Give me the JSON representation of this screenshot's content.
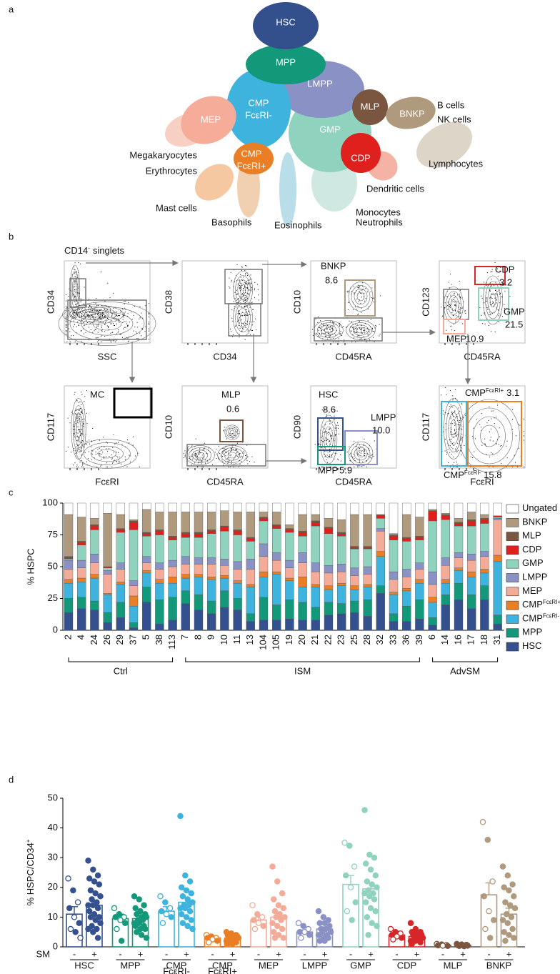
{
  "panel_labels": [
    "a",
    "b",
    "c",
    "d"
  ],
  "diagram": {
    "nodes": [
      {
        "label": "HSC"
      },
      {
        "label": "MPP"
      },
      {
        "label": "CMP",
        "sub": "FcεRI-"
      },
      {
        "label": "LMPP"
      },
      {
        "label": "MEP"
      },
      {
        "label": "GMP"
      },
      {
        "label": "MLP"
      },
      {
        "label": "BNKP"
      },
      {
        "label": "CDP"
      },
      {
        "label": "CMP",
        "sub": "FcεRI+"
      }
    ],
    "outcomes": [
      "B cells",
      "NK cells",
      "Megakaryocytes",
      "Erythrocytes",
      "Lymphocytes",
      "Dendritic cells",
      "Mast cells",
      "Basophils",
      "Eosinophils",
      "Monocytes",
      "Neutrophils"
    ]
  },
  "flow": {
    "title": "CD14",
    "title_sup": "-",
    "title_suffix": "singlets",
    "plots": [
      {
        "ylabel": "CD34",
        "xlabel": "SSC",
        "gates": []
      },
      {
        "ylabel": "CD38",
        "xlabel": "CD34",
        "gates": []
      },
      {
        "ylabel": "CD10",
        "xlabel": "CD45RA",
        "gates": [
          {
            "label": "BNKP",
            "value": "8.6"
          }
        ]
      },
      {
        "ylabel": "CD123",
        "xlabel": "CD45RA",
        "gates": [
          {
            "label": "CDP",
            "value": "3.2"
          },
          {
            "label": "GMP",
            "value": "21.5"
          },
          {
            "label": "MEP",
            "value": "10.9"
          }
        ]
      },
      {
        "ylabel": "CD117",
        "xlabel": "FcεRI",
        "gates": [
          {
            "label": "MC"
          }
        ]
      },
      {
        "ylabel": "CD10",
        "xlabel": "CD45RA",
        "gates": [
          {
            "label": "MLP",
            "value": "0.6"
          }
        ]
      },
      {
        "ylabel": "CD90",
        "xlabel": "CD45RA",
        "gates": [
          {
            "label": "HSC",
            "value": "8.6"
          },
          {
            "label": "LMPP",
            "value": "10.0"
          },
          {
            "label": "MPP",
            "value": "5.9"
          }
        ]
      },
      {
        "ylabel": "CD117",
        "xlabel": "FcεRI",
        "gates": [
          {
            "label": "CMP",
            "sup": "FcεRI+",
            "value": "3.1"
          },
          {
            "label": "CMP",
            "sup": "FcεRI-",
            "value": "15.8"
          }
        ]
      }
    ]
  },
  "chart_data": [
    {
      "type": "stacked_bar",
      "ylabel": "% HSPC",
      "ylim": [
        0,
        100
      ],
      "yticks": [
        0,
        25,
        50,
        75,
        100
      ],
      "groups": [
        {
          "name": "Ctrl",
          "categories": [
            "2",
            "4",
            "24",
            "26",
            "29",
            "37",
            "5",
            "38",
            "113"
          ]
        },
        {
          "name": "ISM",
          "categories": [
            "7",
            "8",
            "9",
            "10",
            "11",
            "13",
            "104",
            "105",
            "19",
            "20",
            "21",
            "22",
            "23",
            "25",
            "28",
            "32",
            "33",
            "36",
            "39"
          ]
        },
        {
          "name": "AdvSM",
          "categories": [
            "6",
            "14",
            "16",
            "17",
            "18",
            "31"
          ]
        }
      ],
      "series": [
        {
          "name": "HSC",
          "color": "#34508f",
          "values": [
            14,
            17,
            16,
            6,
            10,
            2,
            22,
            5,
            8,
            21,
            16,
            13,
            18,
            16,
            7,
            8,
            8,
            9,
            8,
            8,
            12,
            13,
            14,
            11,
            29,
            7,
            7,
            9,
            4,
            20,
            24,
            17,
            24,
            5
          ]
        },
        {
          "name": "MPP",
          "color": "#13987a",
          "values": [
            11,
            9,
            7,
            8,
            12,
            4,
            12,
            19,
            18,
            10,
            12,
            10,
            13,
            9,
            6,
            18,
            12,
            15,
            14,
            10,
            10,
            8,
            9,
            13,
            6,
            6,
            12,
            15,
            6,
            8,
            13,
            11,
            11,
            7
          ]
        },
        {
          "name": "CMP",
          "name_sup": "FcεRI-",
          "color": "#3db3dd",
          "values": [
            12,
            12,
            18,
            14,
            14,
            13,
            11,
            13,
            11,
            10,
            14,
            17,
            10,
            12,
            21,
            16,
            24,
            15,
            12,
            16,
            10,
            14,
            9,
            10,
            23,
            15,
            12,
            13,
            12,
            9,
            10,
            14,
            10,
            42
          ]
        },
        {
          "name": "CMP",
          "name_sup": "FcεRI+",
          "color": "#ea7e24",
          "values": [
            3,
            3,
            3,
            1,
            2,
            8,
            2,
            3,
            5,
            3,
            2,
            2,
            2,
            2,
            2,
            4,
            2,
            2,
            8,
            2,
            3,
            2,
            3,
            2,
            4,
            2,
            2,
            3,
            4,
            3,
            2,
            4,
            3,
            5
          ]
        },
        {
          "name": "MEP",
          "color": "#f4ab98",
          "values": [
            8,
            8,
            9,
            15,
            10,
            8,
            6,
            8,
            8,
            8,
            8,
            10,
            8,
            9,
            12,
            12,
            9,
            8,
            11,
            10,
            10,
            9,
            8,
            8,
            16,
            10,
            9,
            8,
            10,
            11,
            8,
            9,
            10,
            28
          ]
        },
        {
          "name": "LMPP",
          "color": "#8a91c4",
          "values": [
            7,
            6,
            7,
            3,
            5,
            4,
            5,
            5,
            5,
            6,
            5,
            5,
            5,
            6,
            8,
            10,
            6,
            6,
            8,
            7,
            6,
            6,
            6,
            6,
            2,
            6,
            6,
            5,
            10,
            6,
            4,
            5,
            4,
            1
          ]
        },
        {
          "name": "GMP",
          "color": "#8fd3bf",
          "values": [
            1,
            12,
            19,
            2,
            24,
            40,
            16,
            22,
            16,
            15,
            16,
            19,
            22,
            21,
            14,
            18,
            19,
            22,
            13,
            29,
            25,
            22,
            15,
            14,
            8,
            25,
            22,
            18,
            40,
            30,
            21,
            22,
            22,
            1
          ]
        },
        {
          "name": "CDP",
          "color": "#e0201c",
          "values": [
            1,
            2,
            3,
            1,
            2,
            6,
            2,
            3,
            2,
            3,
            3,
            2,
            3,
            3,
            2,
            2,
            2,
            2,
            3,
            3,
            4,
            2,
            1,
            1,
            2,
            3,
            2,
            2,
            8,
            3,
            2,
            4,
            3,
            1
          ]
        },
        {
          "name": "MLP",
          "color": "#7a5640",
          "values": [
            1,
            1,
            1,
            0,
            1,
            1,
            1,
            1,
            1,
            1,
            1,
            1,
            1,
            1,
            1,
            1,
            1,
            1,
            1,
            1,
            1,
            1,
            1,
            1,
            1,
            1,
            1,
            1,
            0,
            1,
            1,
            1,
            1,
            0
          ]
        },
        {
          "name": "BNKP",
          "color": "#b09a7e",
          "values": [
            33,
            19,
            5,
            42,
            11,
            1,
            18,
            14,
            19,
            16,
            16,
            14,
            12,
            14,
            20,
            4,
            10,
            3,
            13,
            5,
            7,
            10,
            25,
            25,
            0,
            1,
            18,
            15,
            1,
            1,
            3,
            6,
            3,
            0
          ]
        },
        {
          "name": "Ungated",
          "color": "#ffffff",
          "values": [
            9,
            11,
            12,
            8,
            9,
            13,
            5,
            7,
            7,
            7,
            7,
            7,
            6,
            7,
            7,
            7,
            7,
            17,
            9,
            9,
            12,
            13,
            9,
            9,
            9,
            24,
            9,
            11,
            5,
            8,
            12,
            7,
            9,
            10
          ]
        }
      ]
    },
    {
      "type": "bar_scatter",
      "ylabel": "% HSPC/CD34",
      "ylabel_sup": "+",
      "ylim": [
        0,
        50
      ],
      "yticks": [
        0,
        10,
        20,
        30,
        40,
        50
      ],
      "group_axis_label": "SM",
      "categories": [
        "HSC",
        "MPP",
        "CMP",
        "CMP",
        "MEP",
        "LMPP",
        "GMP",
        "CDP",
        "MLP",
        "BNKP"
      ],
      "category_subscripts": [
        null,
        null,
        "FcεRI-",
        "FcεRI+",
        null,
        null,
        null,
        null,
        null,
        null
      ],
      "colors": [
        "#34508f",
        "#13987a",
        "#3db3dd",
        "#ea7e24",
        "#f4ab98",
        "#8a91c4",
        "#8fd3bf",
        "#d62728",
        "#7a5640",
        "#b09a7e"
      ],
      "series": [
        {
          "name": "-",
          "values": [
            11,
            9.5,
            12,
            3,
            9,
            5,
            21,
            4,
            0.5,
            17.5
          ],
          "errors": [
            2.5,
            1.5,
            1.5,
            0.5,
            1,
            0.7,
            3,
            0.5,
            0.1,
            4
          ],
          "points": [
            [
              23,
              19,
              15,
              13,
              10,
              8,
              6,
              5,
              3
            ],
            [
              13,
              11,
              10,
              10,
              9,
              8,
              6,
              2
            ],
            [
              17,
              15,
              13,
              12,
              11,
              10,
              8
            ],
            [
              4,
              3.5,
              3,
              3,
              2.5,
              2,
              1.5
            ],
            [
              14,
              11,
              10,
              9,
              8,
              7,
              6
            ],
            [
              8,
              7,
              6,
              5,
              5,
              4,
              3
            ],
            [
              35,
              34,
              27,
              24,
              20,
              15,
              12,
              9
            ],
            [
              6,
              5,
              4.5,
              4,
              3.5,
              3,
              2.5
            ],
            [
              1,
              0.8,
              0.6,
              0.5,
              0.4,
              0.3
            ],
            [
              42,
              36,
              22,
              17,
              12,
              9,
              6,
              3
            ]
          ]
        },
        {
          "name": "+",
          "values": [
            14,
            9.5,
            15,
            3,
            10,
            6,
            19.5,
            3.5,
            0.5,
            11
          ],
          "errors": [
            1.5,
            1,
            1.5,
            0.3,
            1.2,
            0.7,
            2,
            0.4,
            0.1,
            2
          ],
          "points": [
            [
              29,
              26,
              24,
              23,
              22,
              21,
              19,
              18,
              17,
              16,
              15,
              14,
              14,
              13,
              12,
              11,
              10,
              10,
              9,
              8,
              7,
              6,
              6,
              5,
              3
            ],
            [
              17,
              16,
              14,
              13,
              12,
              11,
              11,
              10,
              10,
              9,
              9,
              8,
              8,
              7,
              7,
              6,
              6,
              5,
              4,
              3
            ],
            [
              44,
              24,
              22,
              20,
              19,
              18,
              17,
              16,
              15,
              14,
              14,
              13,
              13,
              12,
              11,
              10,
              9,
              8,
              7,
              6
            ],
            [
              5,
              4.5,
              4,
              4,
              3.5,
              3.5,
              3,
              3,
              3,
              2.5,
              2.5,
              2,
              2,
              1.5,
              1,
              1
            ],
            [
              27,
              22,
              18,
              16,
              14,
              13,
              12,
              11,
              10,
              10,
              9,
              8,
              7,
              6,
              5,
              4,
              3,
              3
            ],
            [
              12,
              10,
              9,
              8,
              8,
              7,
              6,
              6,
              5,
              5,
              4,
              4,
              3,
              3,
              2,
              2
            ],
            [
              46,
              31,
              30,
              28,
              26,
              24,
              22,
              21,
              20,
              19,
              18,
              18,
              17,
              16,
              15,
              13,
              12,
              10,
              8,
              7,
              4
            ],
            [
              8,
              6,
              5,
              5,
              4.5,
              4,
              4,
              3.5,
              3,
              3,
              2.5,
              2,
              2,
              1.5,
              1
            ],
            [
              1,
              0.8,
              0.7,
              0.5,
              0.5,
              0.4,
              0.3,
              0.2
            ],
            [
              27,
              24,
              21,
              20,
              19,
              17,
              15,
              14,
              13,
              11,
              10,
              9,
              8,
              6,
              5,
              4,
              3,
              2
            ]
          ]
        }
      ]
    }
  ]
}
